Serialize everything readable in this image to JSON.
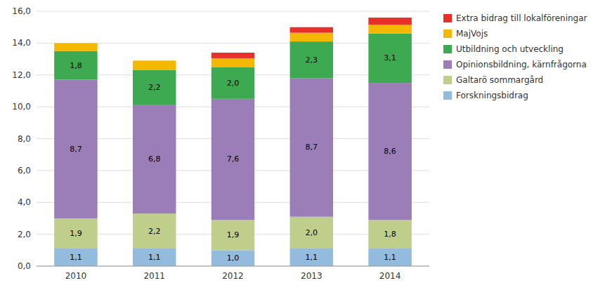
{
  "chart_data": {
    "type": "bar",
    "stacked": true,
    "categories": [
      "2010",
      "2011",
      "2012",
      "2013",
      "2014"
    ],
    "series": [
      {
        "name": "Forskningsbidrag",
        "color": "#92BBDE",
        "values": [
          1.1,
          1.1,
          1.0,
          1.1,
          1.1
        ],
        "value_labels": [
          "1,1",
          "1,1",
          "1,0",
          "1,1",
          "1,1"
        ]
      },
      {
        "name": "Galtarö sommargård",
        "color": "#BFCE8A",
        "values": [
          1.9,
          2.2,
          1.9,
          2.0,
          1.8
        ],
        "value_labels": [
          "1,9",
          "2,2",
          "1,9",
          "2,0",
          "1,8"
        ]
      },
      {
        "name": "Opinionsbildning, kärnfrågorna",
        "color": "#9B7DB8",
        "values": [
          8.7,
          6.8,
          7.6,
          8.7,
          8.6
        ],
        "value_labels": [
          "8,7",
          "6,8",
          "7,6",
          "8,7",
          "8,6"
        ]
      },
      {
        "name": "Utbildning och utveckling",
        "color": "#3DAA52",
        "values": [
          1.8,
          2.2,
          2.0,
          2.3,
          3.1
        ],
        "value_labels": [
          "1,8",
          "2,2",
          "2,0",
          "2,3",
          "3,1"
        ]
      },
      {
        "name": "MajVojs",
        "color": "#F5B800",
        "values": [
          0.5,
          0.6,
          0.55,
          0.55,
          0.55
        ]
      },
      {
        "name": "Extra bidrag till lokalföreningar",
        "color": "#E8302A",
        "values": [
          0.0,
          0.0,
          0.35,
          0.35,
          0.45
        ]
      }
    ],
    "ylim": [
      0,
      16.0
    ],
    "yticks": [
      {
        "value": 0.0,
        "label": "0,0"
      },
      {
        "value": 2.0,
        "label": "2,0"
      },
      {
        "value": 4.0,
        "label": "4,0"
      },
      {
        "value": 6.0,
        "label": "6,0"
      },
      {
        "value": 8.0,
        "label": "8,0"
      },
      {
        "value": 10.0,
        "label": "10,0"
      },
      {
        "value": 12.0,
        "label": "12,0"
      },
      {
        "value": 14.0,
        "label": "14,0"
      },
      {
        "value": 16.0,
        "label": "16,0"
      }
    ],
    "grid": true,
    "legend": "right",
    "data_labels": true
  }
}
